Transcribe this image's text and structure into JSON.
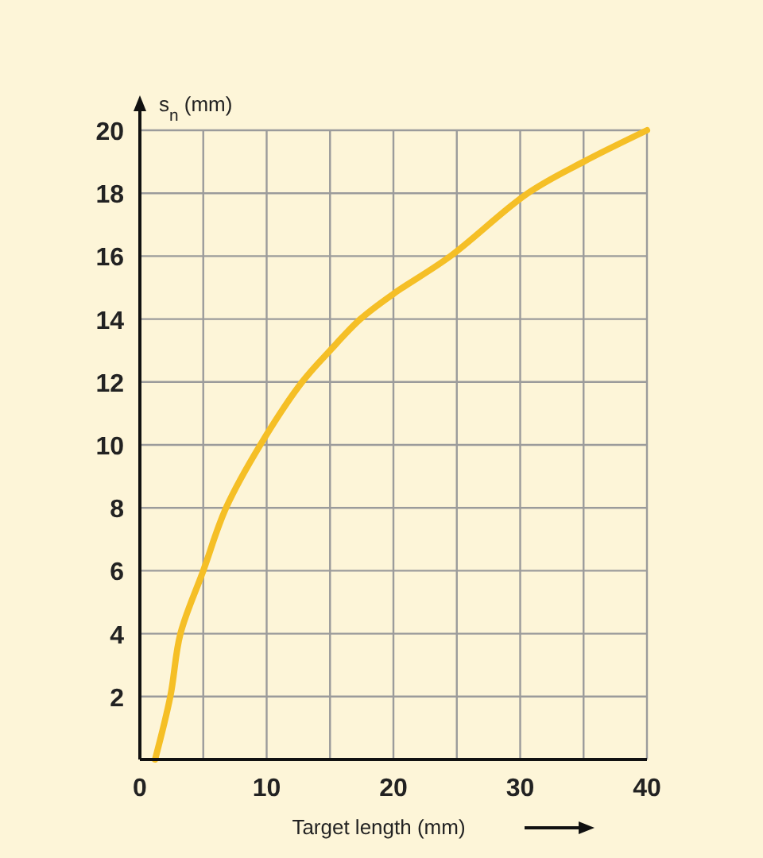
{
  "chart_data": {
    "type": "line",
    "xlabel": "Target length (mm)",
    "ylabel": "s$_{n}$ (mm)",
    "x": [
      1.2,
      2.4,
      3.2,
      5,
      6.8,
      9.5,
      12.8,
      15,
      17.4,
      20,
      24.5,
      30.6,
      35,
      40
    ],
    "series": [
      {
        "color": "#f5bf26",
        "values": [
          0,
          2,
          4,
          6,
          8,
          10,
          12,
          13,
          14,
          14.8,
          16,
          18,
          19,
          20
        ]
      }
    ],
    "xlim": [
      0,
      40
    ],
    "ylim": [
      0,
      20
    ],
    "xticks": [
      0,
      {
        "value": 5,
        "label": null
      },
      10,
      {
        "value": 15,
        "label": null
      },
      20,
      {
        "value": 25,
        "label": null
      },
      30,
      {
        "value": 35,
        "label": null
      },
      40
    ],
    "yticks": [
      2,
      4,
      6,
      8,
      10,
      12,
      14,
      16,
      18,
      20
    ],
    "grid": true,
    "marker": "none",
    "line_style": "solid"
  }
}
